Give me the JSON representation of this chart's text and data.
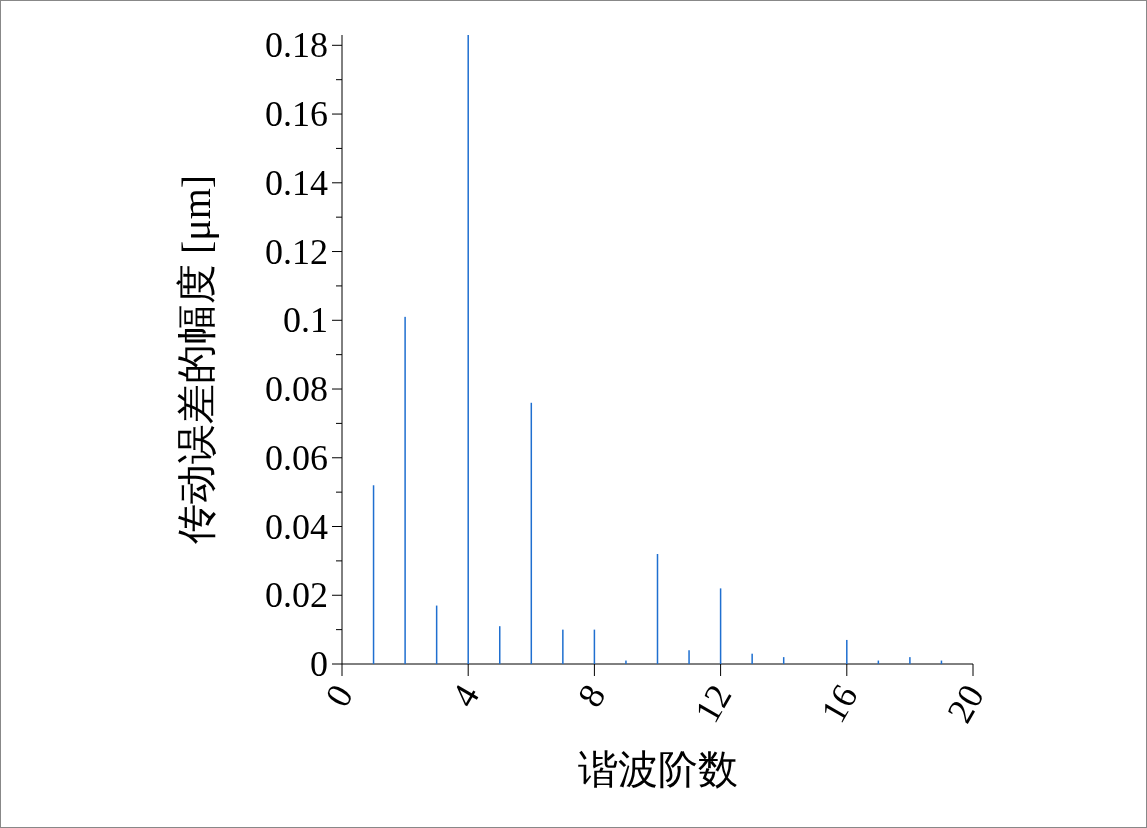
{
  "chart_data": {
    "type": "bar",
    "xlabel": "谐波阶数",
    "ylabel": "传动误差的幅度 [μm]",
    "x": [
      1,
      2,
      3,
      4,
      5,
      6,
      7,
      8,
      9,
      10,
      11,
      12,
      13,
      14,
      16,
      17,
      18,
      19
    ],
    "values": [
      0.052,
      0.101,
      0.017,
      0.183,
      0.011,
      0.076,
      0.01,
      0.01,
      0.001,
      0.032,
      0.004,
      0.022,
      0.003,
      0.002,
      0.007,
      0.001,
      0.002,
      0.001
    ],
    "color": "#1f6fd0",
    "xlim": [
      0,
      20
    ],
    "ylim": [
      0,
      0.183
    ],
    "xticks": [
      0,
      4,
      8,
      12,
      16,
      20
    ],
    "yticks": [
      0,
      0.02,
      0.04,
      0.06,
      0.08,
      0.1,
      0.12,
      0.14,
      0.16,
      0.18
    ]
  }
}
